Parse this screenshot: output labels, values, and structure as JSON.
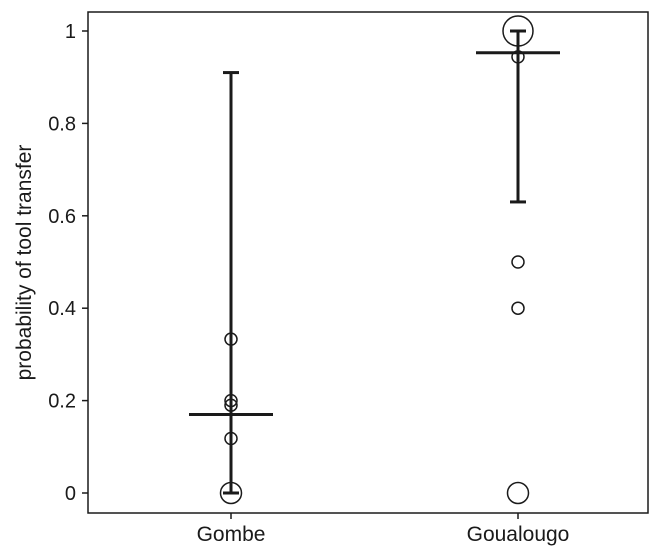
{
  "chart_data": {
    "type": "scatter",
    "title": "",
    "xlabel": "",
    "ylabel": "probability of tool transfer",
    "categories": [
      "Gombe",
      "Goualougo"
    ],
    "ylim": [
      -0.03,
      1.04
    ],
    "yticks": [
      0,
      0.2,
      0.4,
      0.6,
      0.8,
      1
    ],
    "ytick_labels": [
      "0",
      "0.2",
      "0.4",
      "0.6",
      "0.8",
      "1"
    ],
    "grid": false,
    "legend": "none",
    "estimates": [
      {
        "category": "Gombe",
        "mean": 0.17,
        "lower": 0.0,
        "upper": 0.91
      },
      {
        "category": "Goualougo",
        "mean": 0.953,
        "lower": 0.63,
        "upper": 1.0
      }
    ],
    "points": [
      {
        "category": "Gombe",
        "y": 0.333,
        "size": 1
      },
      {
        "category": "Gombe",
        "y": 0.2,
        "size": 1
      },
      {
        "category": "Gombe",
        "y": 0.19,
        "size": 1
      },
      {
        "category": "Gombe",
        "y": 0.118,
        "size": 1
      },
      {
        "category": "Gombe",
        "y": 0.0,
        "size": 2
      },
      {
        "category": "Goualougo",
        "y": 1.0,
        "size": 3
      },
      {
        "category": "Goualougo",
        "y": 0.944,
        "size": 1
      },
      {
        "category": "Goualougo",
        "y": 0.5,
        "size": 1
      },
      {
        "category": "Goualougo",
        "y": 0.4,
        "size": 1
      },
      {
        "category": "Goualougo",
        "y": 0.0,
        "size": 2
      }
    ],
    "colors": {
      "ink": "#1a1a1a",
      "background": "#ffffff"
    }
  }
}
